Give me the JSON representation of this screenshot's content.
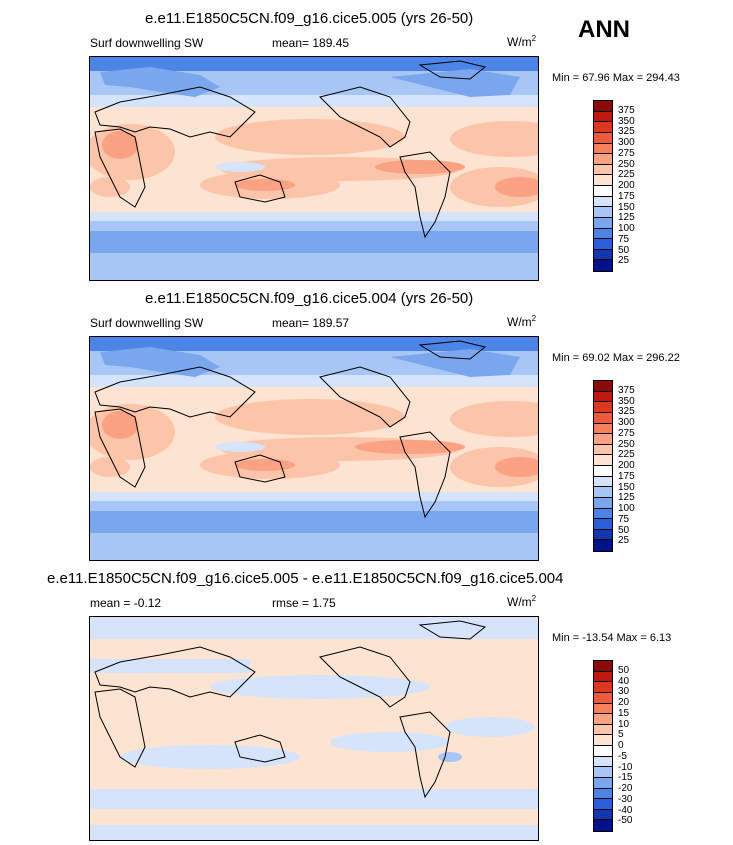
{
  "season": "ANN",
  "panels": [
    {
      "title": "e.e11.E1850C5CN.f09_g16.cice5.005 (yrs 26-50)",
      "left_label": "Surf downwelling SW",
      "mid_label": "mean= 189.45",
      "units": "W/m",
      "units_sup": "2",
      "minmax": "Min =  67.96 Max = 294.43",
      "scale": "abs"
    },
    {
      "title": "e.e11.E1850C5CN.f09_g16.cice5.004 (yrs 26-50)",
      "left_label": "Surf downwelling SW",
      "mid_label": "mean= 189.57",
      "units": "W/m",
      "units_sup": "2",
      "minmax": "Min =  69.02 Max = 296.22",
      "scale": "abs"
    },
    {
      "title": "e.e11.E1850C5CN.f09_g16.cice5.005 - e.e11.E1850C5CN.f09_g16.cice5.004",
      "left_label": "mean =  -0.12",
      "mid_label": "rmse =   1.75",
      "units": "W/m",
      "units_sup": "2",
      "minmax": "Min = -13.54 Max =   6.13",
      "scale": "diff"
    }
  ],
  "colorbars": {
    "abs": {
      "labels": [
        "375",
        "350",
        "325",
        "300",
        "275",
        "250",
        "225",
        "200",
        "175",
        "150",
        "125",
        "100",
        "75",
        "50",
        "25"
      ],
      "colors": [
        "#8c0a0a",
        "#c01a10",
        "#dc3a1e",
        "#ee5b38",
        "#f6805c",
        "#faa283",
        "#fcc4a8",
        "#fde3d2",
        "#ffffff",
        "#d5e4fb",
        "#a8c6f5",
        "#7aa6ee",
        "#4d84e8",
        "#2a5fd9",
        "#1237b0",
        "#001488"
      ]
    },
    "diff": {
      "labels": [
        "50",
        "40",
        "30",
        "20",
        "15",
        "10",
        "5",
        "0",
        "-5",
        "-10",
        "-15",
        "-20",
        "-30",
        "-40",
        "-50"
      ],
      "colors": [
        "#8c0a0a",
        "#c01a10",
        "#dc3a1e",
        "#ee5b38",
        "#f6805c",
        "#faa283",
        "#fcc4a8",
        "#fde3d2",
        "#ffffff",
        "#d5e4fb",
        "#a8c6f5",
        "#7aa6ee",
        "#4d84e8",
        "#2a5fd9",
        "#1237b0",
        "#001488"
      ]
    }
  },
  "map_colors": {
    "deep_blue": "#4d84e8",
    "mid_blue": "#7aa6ee",
    "light_blue": "#a8c6f5",
    "pale_blue": "#d5e4fb",
    "white": "#ffffff",
    "pale_orange": "#fde3d2",
    "light_orange": "#fcc4a8",
    "orange": "#faa283",
    "dark_orange": "#f6805c"
  }
}
